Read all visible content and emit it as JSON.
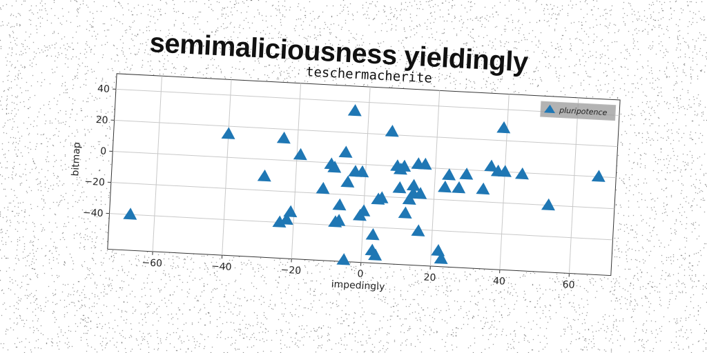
{
  "headline": "semimaliciousness yieldingly",
  "chart_data": {
    "type": "scatter",
    "title": "teschermacherite",
    "xlabel": "impedingly",
    "ylabel": "bitmap",
    "xlim": [
      -73,
      72
    ],
    "ylim": [
      -63,
      50
    ],
    "xticks": [
      -60,
      -40,
      -20,
      0,
      20,
      40,
      60
    ],
    "yticks": [
      -40,
      -20,
      0,
      20,
      40
    ],
    "grid": true,
    "marker": "triangle-up",
    "legend_position": "top-right",
    "series": [
      {
        "name": "pluripotence",
        "color": "#1f77b4",
        "x": [
          -67,
          -40,
          -29,
          -24,
          -24,
          -22,
          -21,
          -19,
          -12,
          -10,
          -9,
          -8,
          -7,
          -7,
          -6,
          -5,
          -5,
          -4,
          -3,
          -1,
          -1,
          0,
          3,
          3,
          4,
          4,
          5,
          7,
          9,
          10,
          10,
          11,
          12,
          13,
          14,
          14,
          15,
          16,
          16,
          17,
          22,
          23,
          23,
          24,
          27,
          29,
          34,
          36,
          38,
          39,
          40,
          45,
          53,
          67
        ],
        "y": [
          -40,
          15,
          -11,
          -40,
          14,
          -38,
          -33,
          4,
          -17,
          -1,
          -3,
          -38,
          -27,
          -37,
          7,
          -12,
          -62,
          34,
          -5,
          -5,
          -33,
          -30,
          -45,
          -55,
          -22,
          -58,
          -21,
          22,
          0,
          -14,
          -2,
          0,
          -30,
          -21,
          -12,
          -17,
          2,
          -17,
          -41,
          2,
          -53,
          -12,
          -58,
          -4,
          -12,
          -3,
          -12,
          3,
          0,
          28,
          0,
          -1,
          -20,
          0
        ]
      }
    ]
  }
}
